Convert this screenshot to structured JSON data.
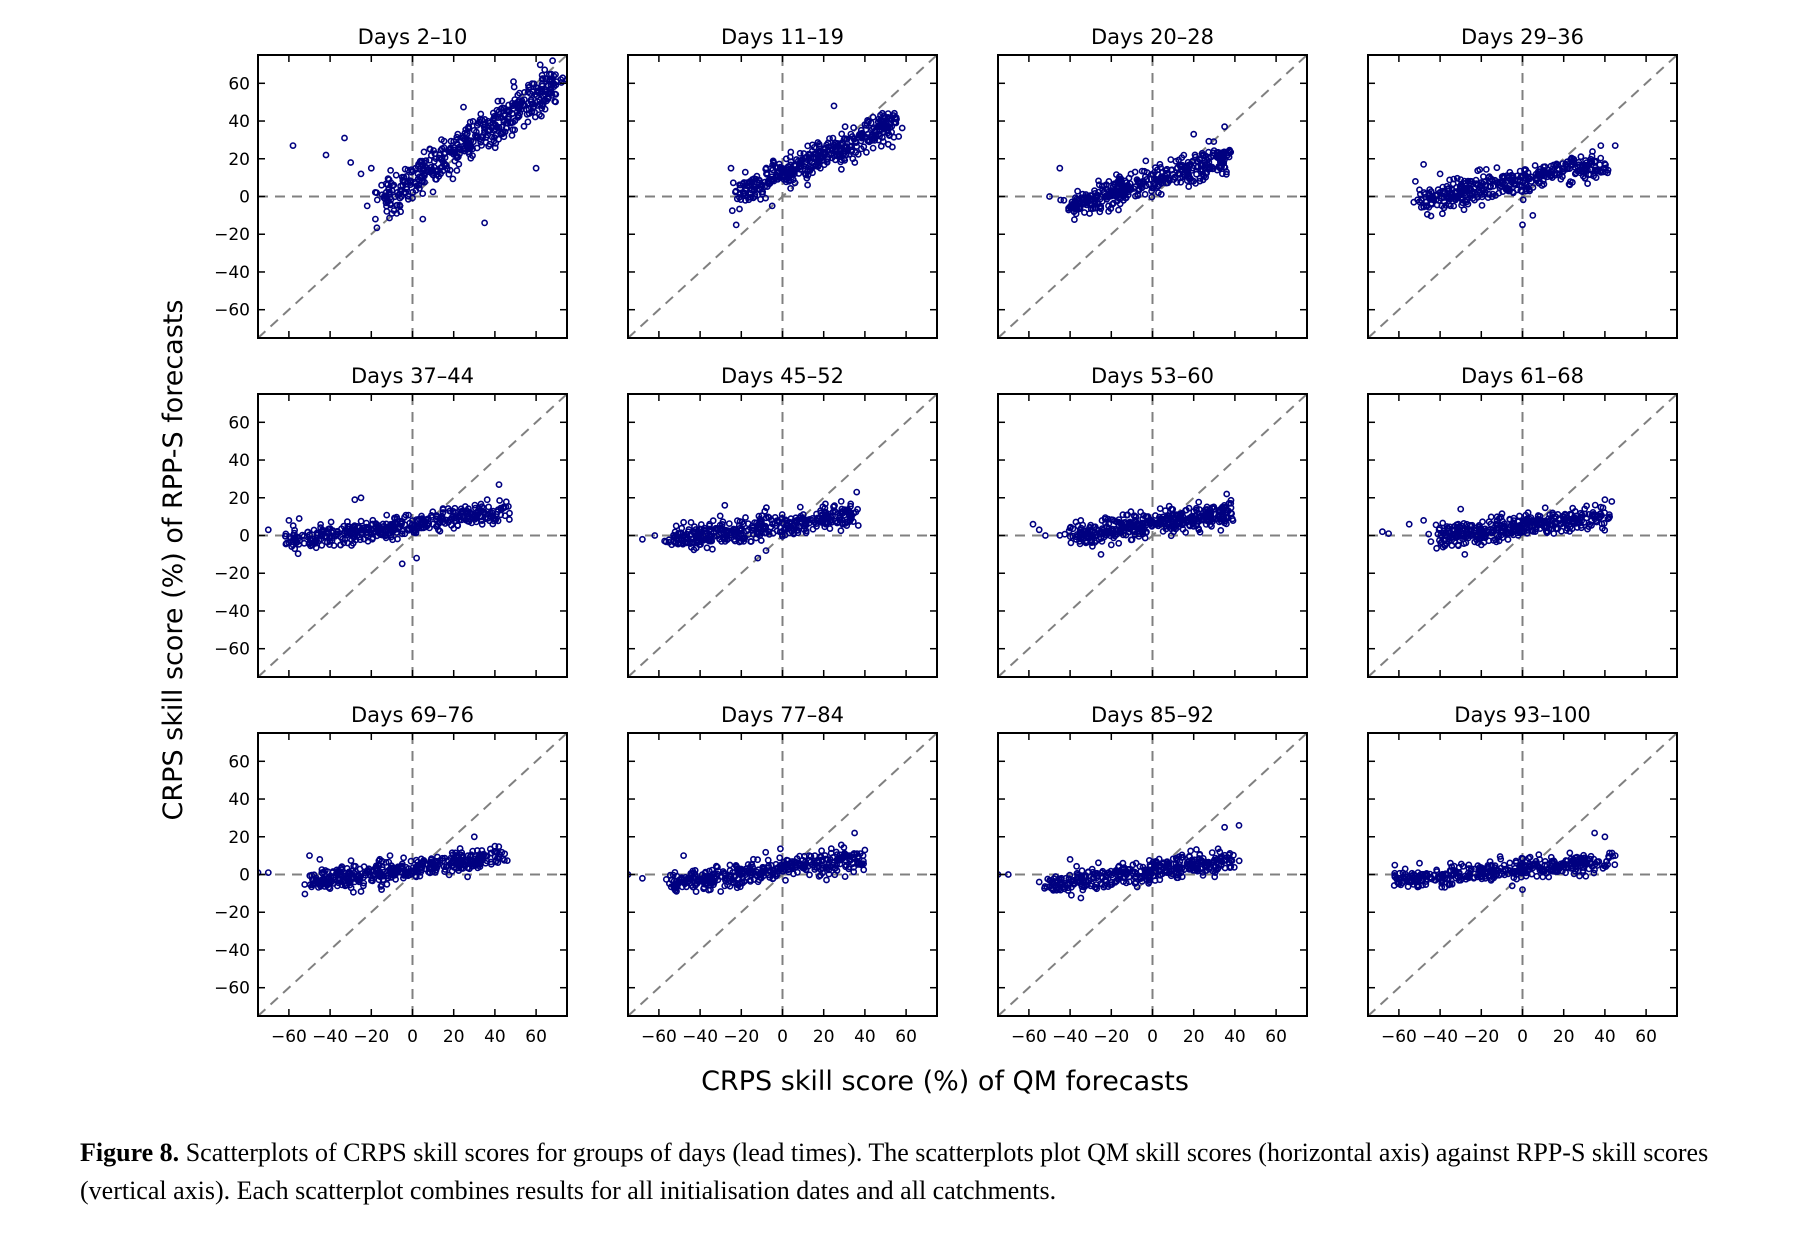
{
  "chart_data": {
    "type": "scatter",
    "layout": "3x4 grid of panels",
    "xlabel": "CRPS skill score  (%) of QM forecasts",
    "ylabel": "CRPS skill score  (%) of RPP-S forecasts",
    "xlim": [
      -75,
      75
    ],
    "ylim": [
      -75,
      75
    ],
    "x_ticks": [
      -60,
      -40,
      -20,
      0,
      20,
      40,
      60
    ],
    "y_ticks": [
      -60,
      -40,
      -20,
      0,
      20,
      40,
      60
    ],
    "reference_lines": [
      "y = 0 (dashed)",
      "x = 0 (dashed)",
      "y = x (dashed)"
    ],
    "marker_color": "#000080",
    "panels": [
      {
        "title": "Days 2–10",
        "cloud": {
          "x0": -15,
          "x1": 70,
          "slope": 0.72,
          "intercept": 9,
          "spread": 9,
          "n": 460
        },
        "outliers": [
          [
            -58,
            27
          ],
          [
            -42,
            22
          ],
          [
            -33,
            31
          ],
          [
            -30,
            18
          ],
          [
            -25,
            12
          ],
          [
            -20,
            15
          ],
          [
            -15,
            6
          ],
          [
            -12,
            -2
          ],
          [
            -22,
            -5
          ],
          [
            -18,
            -12
          ],
          [
            -10,
            -9
          ],
          [
            35,
            -14
          ],
          [
            68,
            72
          ],
          [
            72,
            62
          ],
          [
            75,
            62
          ],
          [
            60,
            15
          ],
          [
            5,
            -12
          ]
        ]
      },
      {
        "title": "Days 11–19",
        "cloud": {
          "x0": -22,
          "x1": 55,
          "slope": 0.5,
          "intercept": 12,
          "spread": 7,
          "n": 420
        },
        "outliers": [
          [
            -18,
            -2
          ],
          [
            25,
            48
          ],
          [
            48,
            40
          ],
          [
            55,
            42
          ],
          [
            -25,
            15
          ],
          [
            -5,
            -5
          ]
        ]
      },
      {
        "title": "Days 20–28",
        "cloud": {
          "x0": -40,
          "x1": 37,
          "slope": 0.35,
          "intercept": 8,
          "spread": 6,
          "n": 420
        },
        "outliers": [
          [
            -43,
            -2
          ],
          [
            -50,
            0
          ],
          [
            -45,
            15
          ],
          [
            -32,
            0
          ],
          [
            20,
            33
          ],
          [
            35,
            37
          ]
        ]
      },
      {
        "title": "Days 29–36",
        "cloud": {
          "x0": -50,
          "x1": 40,
          "slope": 0.22,
          "intercept": 9,
          "spread": 6,
          "n": 400
        },
        "outliers": [
          [
            -48,
            17
          ],
          [
            -40,
            12
          ],
          [
            -52,
            8
          ],
          [
            -35,
            -5
          ],
          [
            38,
            27
          ],
          [
            45,
            27
          ],
          [
            0,
            -15
          ],
          [
            5,
            -10
          ]
        ]
      },
      {
        "title": "Days 37–44",
        "cloud": {
          "x0": -60,
          "x1": 45,
          "slope": 0.16,
          "intercept": 6,
          "spread": 5,
          "n": 400
        },
        "outliers": [
          [
            -70,
            3
          ],
          [
            -60,
            8
          ],
          [
            -55,
            9
          ],
          [
            -28,
            19
          ],
          [
            -25,
            20
          ],
          [
            2,
            -12
          ],
          [
            -5,
            -15
          ],
          [
            42,
            27
          ],
          [
            -35,
            -5
          ]
        ]
      },
      {
        "title": "Days 45–52",
        "cloud": {
          "x0": -55,
          "x1": 36,
          "slope": 0.15,
          "intercept": 6,
          "spread": 5,
          "n": 400
        },
        "outliers": [
          [
            -68,
            -2
          ],
          [
            -62,
            0
          ],
          [
            -48,
            7
          ],
          [
            -28,
            16
          ],
          [
            -12,
            -12
          ],
          [
            -8,
            -8
          ],
          [
            36,
            23
          ],
          [
            -35,
            -3
          ]
        ]
      },
      {
        "title": "Days 53–60",
        "cloud": {
          "x0": -40,
          "x1": 38,
          "slope": 0.15,
          "intercept": 6,
          "spread": 5,
          "n": 400
        },
        "outliers": [
          [
            -58,
            6
          ],
          [
            -55,
            3
          ],
          [
            -52,
            0
          ],
          [
            -25,
            -10
          ],
          [
            -20,
            -5
          ],
          [
            36,
            22
          ],
          [
            38,
            17
          ]
        ]
      },
      {
        "title": "Days 61–68",
        "cloud": {
          "x0": -42,
          "x1": 42,
          "slope": 0.15,
          "intercept": 5,
          "spread": 5,
          "n": 380
        },
        "outliers": [
          [
            -68,
            2
          ],
          [
            -65,
            1
          ],
          [
            -55,
            6
          ],
          [
            -48,
            8
          ],
          [
            -30,
            14
          ],
          [
            -28,
            -10
          ],
          [
            -20,
            -5
          ],
          [
            40,
            19
          ],
          [
            38,
            15
          ]
        ]
      },
      {
        "title": "Days 69–76",
        "cloud": {
          "x0": -50,
          "x1": 44,
          "slope": 0.14,
          "intercept": 3,
          "spread": 5,
          "n": 400
        },
        "outliers": [
          [
            -75,
            1
          ],
          [
            -70,
            1
          ],
          [
            -50,
            10
          ],
          [
            -45,
            8
          ],
          [
            -48,
            -3
          ],
          [
            -25,
            -9
          ],
          [
            -15,
            -8
          ],
          [
            30,
            20
          ],
          [
            40,
            15
          ]
        ]
      },
      {
        "title": "Days 77–84",
        "cloud": {
          "x0": -55,
          "x1": 40,
          "slope": 0.14,
          "intercept": 3,
          "spread": 5,
          "n": 400
        },
        "outliers": [
          [
            -75,
            0
          ],
          [
            -68,
            -2
          ],
          [
            -48,
            10
          ],
          [
            -35,
            -8
          ],
          [
            -30,
            -9
          ],
          [
            -22,
            -7
          ],
          [
            35,
            22
          ],
          [
            40,
            13
          ]
        ]
      },
      {
        "title": "Days 85–92",
        "cloud": {
          "x0": -50,
          "x1": 40,
          "slope": 0.15,
          "intercept": 2,
          "spread": 5,
          "n": 380
        },
        "outliers": [
          [
            -75,
            0
          ],
          [
            -70,
            0
          ],
          [
            -55,
            -4
          ],
          [
            -45,
            -5
          ],
          [
            -30,
            -6
          ],
          [
            -40,
            8
          ],
          [
            35,
            25
          ],
          [
            42,
            26
          ]
        ]
      },
      {
        "title": "Days 93–100",
        "cloud": {
          "x0": -60,
          "x1": 42,
          "slope": 0.1,
          "intercept": 3,
          "spread": 4,
          "n": 380
        },
        "outliers": [
          [
            -62,
            5
          ],
          [
            -60,
            -5
          ],
          [
            -55,
            -4
          ],
          [
            -50,
            6
          ],
          [
            -35,
            6
          ],
          [
            -30,
            -3
          ],
          [
            0,
            -8
          ],
          [
            -5,
            -6
          ],
          [
            35,
            22
          ],
          [
            40,
            20
          ],
          [
            45,
            10
          ]
        ]
      }
    ]
  },
  "caption": {
    "label": "Figure 8.",
    "text": " Scatterplots of CRPS skill scores for groups of days (lead times). The scatterplots plot QM skill scores (horizontal axis) against RPP-S skill scores (vertical axis). Each scatterplot combines results for all initialisation dates and all catchments."
  }
}
